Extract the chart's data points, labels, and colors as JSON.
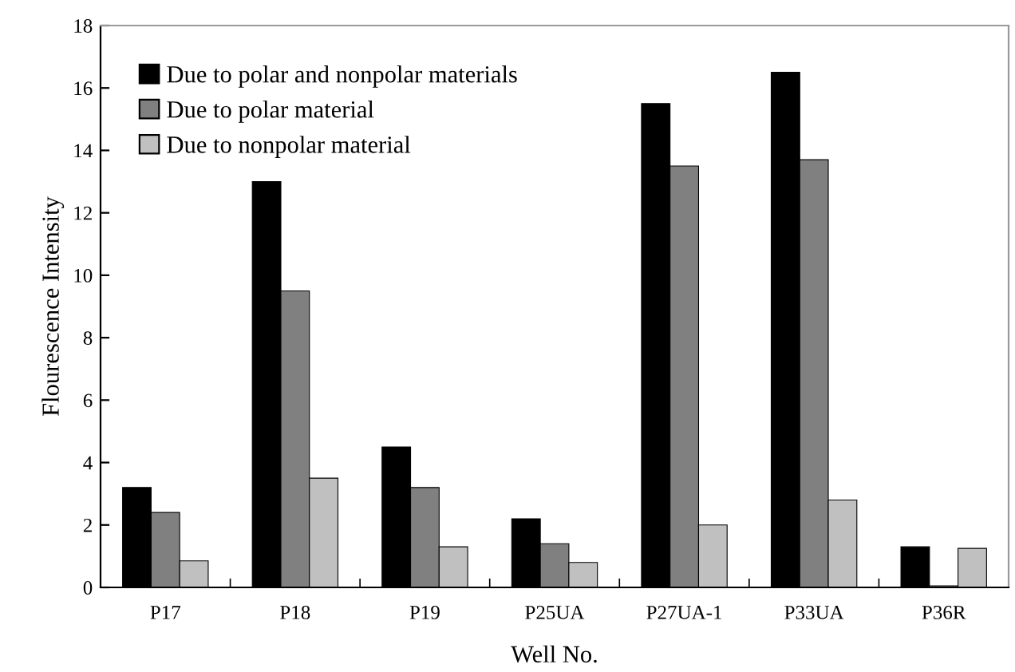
{
  "chart_data": {
    "type": "bar",
    "xlabel": "Well No.",
    "ylabel": "Flourescence Intensity",
    "categories": [
      "P17",
      "P18",
      "P19",
      "P25UA",
      "P27UA-1",
      "P33UA",
      "P36R"
    ],
    "series": [
      {
        "name": "Due to polar and nonpolar materials",
        "color": "#000000",
        "values": [
          3.2,
          13.0,
          4.5,
          2.2,
          15.5,
          16.5,
          1.3
        ]
      },
      {
        "name": "Due to polar material",
        "color": "#808080",
        "values": [
          2.4,
          9.5,
          3.2,
          1.4,
          13.5,
          13.7,
          0.05
        ]
      },
      {
        "name": "Due to nonpolar material",
        "color": "#c0c0c0",
        "values": [
          0.85,
          3.5,
          1.3,
          0.8,
          2.0,
          2.8,
          1.25
        ]
      }
    ],
    "ylim": [
      0,
      18
    ],
    "yticks": [
      0,
      2,
      4,
      6,
      8,
      10,
      12,
      14,
      16,
      18
    ],
    "grid": false,
    "legend": "top left"
  }
}
